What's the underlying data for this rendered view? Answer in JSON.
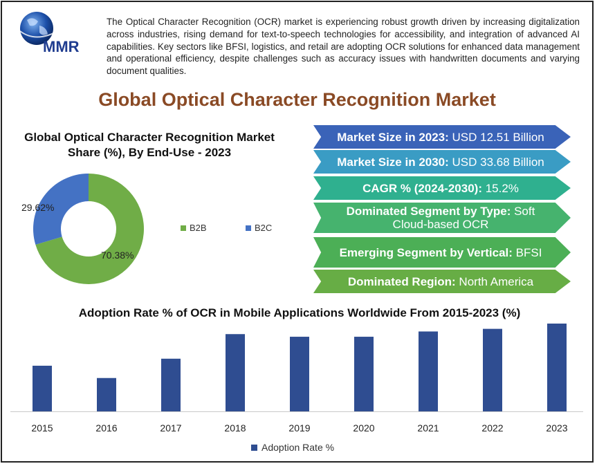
{
  "logo": {
    "text": "MMR"
  },
  "intro": "The Optical Character Recognition (OCR) market is experiencing robust growth driven by increasing digitalization across industries, rising demand for text-to-speech technologies for accessibility, and integration of advanced AI capabilities. Key sectors like BFSI, logistics, and retail are adopting OCR solutions for enhanced data management and operational efficiency, despite challenges such as accuracy issues with handwritten documents and varying document qualities.",
  "main_title": "Global Optical Character Recognition Market",
  "pie_title": "Global Optical Character Recognition Market Share (%), By End-Use - 2023",
  "kpis": [
    {
      "label": "Market Size in 2023:",
      "value": " USD 12.51 Billion",
      "color": "#3a63b8"
    },
    {
      "label": "Market Size in 2030:",
      "value": " USD 33.68 Billion",
      "color": "#3a9cc4"
    },
    {
      "label": "CAGR % (2024-2030):",
      "value": " 15.2%",
      "color": "#2fb08f"
    },
    {
      "label": "Dominated Segment by Type:",
      "value": " Soft Cloud-based OCR",
      "color": "#46b36e"
    },
    {
      "label": "Emerging Segment by Vertical:",
      "value": " BFSI",
      "color": "#4caf56"
    },
    {
      "label": "Dominated Region:",
      "value": " North America",
      "color": "#67ad45"
    }
  ],
  "chart_data": [
    {
      "type": "pie",
      "title": "Global Optical Character Recognition Market Share (%), By End-Use - 2023",
      "categories": [
        "B2B",
        "B2C"
      ],
      "values": [
        70.38,
        29.62
      ],
      "labels": [
        "70.38%",
        "29.62%"
      ],
      "colors": [
        "#70ad47",
        "#4472c4"
      ],
      "donut": true,
      "legend": "right"
    },
    {
      "type": "bar",
      "title": "Adoption Rate % of OCR in Mobile Applications Worldwide From 2015-2023 (%)",
      "categories": [
        "2015",
        "2016",
        "2017",
        "2018",
        "2019",
        "2020",
        "2021",
        "2022",
        "2023"
      ],
      "series": [
        {
          "name": "Adoption Rate %",
          "values": [
            52,
            38,
            60,
            88,
            85,
            85,
            91,
            94,
            100
          ],
          "color": "#2f4d91"
        }
      ],
      "legend": "bottom",
      "grid": false
    }
  ]
}
